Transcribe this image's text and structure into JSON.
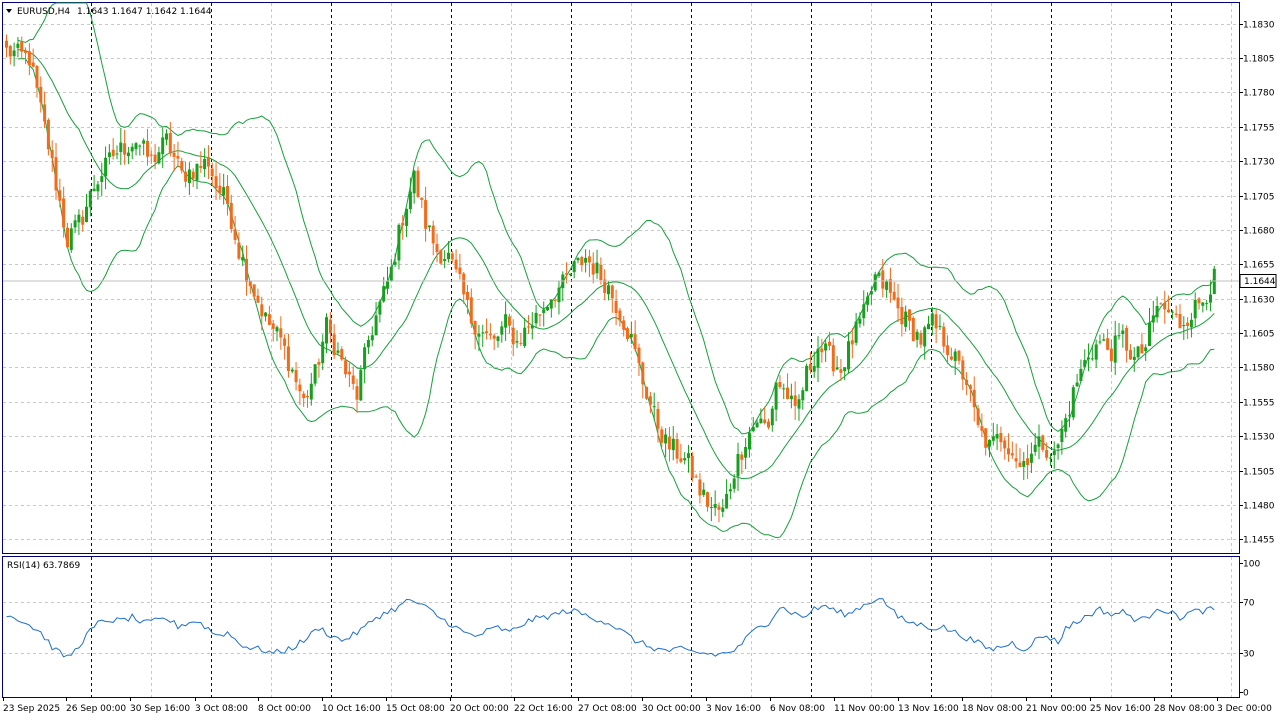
{
  "header": {
    "symbol": "EURUSD,H4",
    "ohlc": "1.1643 1.1647 1.1642 1.1644"
  },
  "current_price_label": "1.1644",
  "rsi_label": "RSI(14) 63.7869",
  "colors": {
    "background": "#ffffff",
    "frame": "#000080",
    "grid": "#c8c8c8",
    "bull_candle": "#16a01e",
    "bear_candle": "#f26a1b",
    "bands": "#17a03c",
    "rsi_line": "#1e6fd0",
    "price_tag_bg": "#ffffff"
  },
  "chart_data": [
    {
      "type": "candlestick",
      "title": "EURUSD,H4",
      "ylim": [
        1.1445,
        1.1845
      ],
      "yticks": [
        "1.1830",
        "1.1805",
        "1.1780",
        "1.1755",
        "1.1730",
        "1.1705",
        "1.1680",
        "1.1655",
        "1.1630",
        "1.1605",
        "1.1580",
        "1.1555",
        "1.1530",
        "1.1505",
        "1.1480",
        "1.1455"
      ],
      "xticks": [
        "23 Sep 2025",
        "26 Sep 00:00",
        "30 Sep 16:00",
        "3 Oct 08:00",
        "8 Oct 00:00",
        "10 Oct 16:00",
        "15 Oct 08:00",
        "20 Oct 00:00",
        "22 Oct 16:00",
        "27 Oct 08:00",
        "30 Oct 00:00",
        "3 Nov 16:00",
        "6 Nov 08:00",
        "11 Nov 00:00",
        "13 Nov 16:00",
        "18 Nov 08:00",
        "21 Nov 00:00",
        "25 Nov 16:00",
        "28 Nov 08:00",
        "3 Dec 00:00"
      ],
      "indicators": [
        "Bollinger Bands"
      ],
      "close_path": [
        [
          0,
          1.181
        ],
        [
          6,
          1.1805
        ],
        [
          10,
          1.1755
        ],
        [
          14,
          1.17
        ],
        [
          16,
          1.1672
        ],
        [
          20,
          1.169
        ],
        [
          23,
          1.1712
        ],
        [
          28,
          1.1735
        ],
        [
          34,
          1.1745
        ],
        [
          38,
          1.173
        ],
        [
          42,
          1.1745
        ],
        [
          46,
          1.172
        ],
        [
          50,
          1.1725
        ],
        [
          53,
          1.173
        ],
        [
          55,
          1.1712
        ],
        [
          58,
          1.17
        ],
        [
          61,
          1.1665
        ],
        [
          65,
          1.1635
        ],
        [
          68,
          1.1615
        ],
        [
          72,
          1.16
        ],
        [
          76,
          1.157
        ],
        [
          78,
          1.1555
        ],
        [
          81,
          1.1575
        ],
        [
          84,
          1.161
        ],
        [
          87,
          1.159
        ],
        [
          90,
          1.157
        ],
        [
          92,
          1.156
        ],
        [
          95,
          1.16
        ],
        [
          98,
          1.1625
        ],
        [
          101,
          1.165
        ],
        [
          104,
          1.169
        ],
        [
          107,
          1.1718
        ],
        [
          110,
          1.1685
        ],
        [
          113,
          1.1665
        ],
        [
          116,
          1.166
        ],
        [
          119,
          1.164
        ],
        [
          122,
          1.1615
        ],
        [
          125,
          1.1605
        ],
        [
          128,
          1.1598
        ],
        [
          131,
          1.1612
        ],
        [
          134,
          1.1598
        ],
        [
          137,
          1.161
        ],
        [
          140,
          1.162
        ],
        [
          143,
          1.1632
        ],
        [
          146,
          1.164
        ],
        [
          149,
          1.1652
        ],
        [
          152,
          1.166
        ],
        [
          155,
          1.165
        ],
        [
          158,
          1.1638
        ],
        [
          161,
          1.162
        ],
        [
          164,
          1.16
        ],
        [
          167,
          1.157
        ],
        [
          170,
          1.1545
        ],
        [
          173,
          1.1525
        ],
        [
          176,
          1.1518
        ],
        [
          179,
          1.151
        ],
        [
          182,
          1.149
        ],
        [
          185,
          1.1478
        ],
        [
          188,
          1.1475
        ],
        [
          191,
          1.1505
        ],
        [
          194,
          1.1528
        ],
        [
          197,
          1.1542
        ],
        [
          200,
          1.1535
        ],
        [
          202,
          1.157
        ],
        [
          205,
          1.156
        ],
        [
          207,
          1.1545
        ],
        [
          210,
          1.1575
        ],
        [
          213,
          1.1595
        ],
        [
          216,
          1.1588
        ],
        [
          219,
          1.1578
        ],
        [
          222,
          1.16
        ],
        [
          225,
          1.1618
        ],
        [
          228,
          1.1645
        ],
        [
          231,
          1.1638
        ],
        [
          234,
          1.1622
        ],
        [
          237,
          1.161
        ],
        [
          240,
          1.16
        ],
        [
          243,
          1.1612
        ],
        [
          246,
          1.16
        ],
        [
          249,
          1.1585
        ],
        [
          252,
          1.157
        ],
        [
          255,
          1.1535
        ],
        [
          258,
          1.1522
        ],
        [
          261,
          1.153
        ],
        [
          264,
          1.152
        ],
        [
          266,
          1.1508
        ],
        [
          269,
          1.152
        ],
        [
          272,
          1.1525
        ],
        [
          275,
          1.1515
        ],
        [
          278,
          1.1542
        ],
        [
          281,
          1.157
        ],
        [
          284,
          1.159
        ],
        [
          287,
          1.1598
        ],
        [
          290,
          1.1592
        ],
        [
          293,
          1.1602
        ],
        [
          296,
          1.1585
        ],
        [
          299,
          1.1595
        ],
        [
          302,
          1.1625
        ],
        [
          305,
          1.162
        ],
        [
          308,
          1.1612
        ],
        [
          311,
          1.162
        ],
        [
          314,
          1.163
        ],
        [
          317,
          1.1644
        ]
      ],
      "rsi": {
        "label": "RSI(14) 63.7869",
        "ylim": [
          0,
          100
        ],
        "yticks": [
          "100",
          "70",
          "30",
          "0"
        ],
        "levels": [
          30,
          70
        ],
        "path": [
          [
            0,
            60
          ],
          [
            3,
            57
          ],
          [
            6,
            52
          ],
          [
            9,
            46
          ],
          [
            12,
            35
          ],
          [
            14,
            30
          ],
          [
            16,
            27
          ],
          [
            18,
            32
          ],
          [
            21,
            44
          ],
          [
            24,
            53
          ],
          [
            27,
            56
          ],
          [
            30,
            55
          ],
          [
            33,
            58
          ],
          [
            36,
            53
          ],
          [
            39,
            55
          ],
          [
            42,
            57
          ],
          [
            45,
            51
          ],
          [
            48,
            54
          ],
          [
            50,
            55
          ],
          [
            53,
            49
          ],
          [
            55,
            44
          ],
          [
            58,
            46
          ],
          [
            61,
            38
          ],
          [
            64,
            34
          ],
          [
            67,
            33
          ],
          [
            70,
            30
          ],
          [
            73,
            32
          ],
          [
            76,
            36
          ],
          [
            79,
            42
          ],
          [
            82,
            50
          ],
          [
            85,
            44
          ],
          [
            88,
            40
          ],
          [
            91,
            44
          ],
          [
            94,
            50
          ],
          [
            97,
            58
          ],
          [
            100,
            62
          ],
          [
            103,
            66
          ],
          [
            106,
            72
          ],
          [
            108,
            68
          ],
          [
            111,
            64
          ],
          [
            114,
            57
          ],
          [
            117,
            52
          ],
          [
            120,
            46
          ],
          [
            123,
            43
          ],
          [
            126,
            47
          ],
          [
            129,
            50
          ],
          [
            132,
            46
          ],
          [
            135,
            52
          ],
          [
            138,
            56
          ],
          [
            141,
            58
          ],
          [
            144,
            60
          ],
          [
            147,
            63
          ],
          [
            150,
            62
          ],
          [
            153,
            58
          ],
          [
            156,
            56
          ],
          [
            159,
            52
          ],
          [
            162,
            46
          ],
          [
            165,
            40
          ],
          [
            168,
            36
          ],
          [
            171,
            33
          ],
          [
            174,
            32
          ],
          [
            177,
            33
          ],
          [
            180,
            31
          ],
          [
            183,
            30
          ],
          [
            186,
            29
          ],
          [
            189,
            30
          ],
          [
            192,
            34
          ],
          [
            195,
            44
          ],
          [
            198,
            52
          ],
          [
            200,
            54
          ],
          [
            203,
            66
          ],
          [
            206,
            62
          ],
          [
            209,
            58
          ],
          [
            212,
            64
          ],
          [
            215,
            67
          ],
          [
            218,
            62
          ],
          [
            221,
            60
          ],
          [
            224,
            66
          ],
          [
            227,
            70
          ],
          [
            229,
            74
          ],
          [
            231,
            68
          ],
          [
            234,
            58
          ],
          [
            237,
            54
          ],
          [
            240,
            52
          ],
          [
            243,
            50
          ],
          [
            246,
            50
          ],
          [
            249,
            46
          ],
          [
            252,
            42
          ],
          [
            255,
            38
          ],
          [
            258,
            33
          ],
          [
            261,
            35
          ],
          [
            264,
            38
          ],
          [
            267,
            33
          ],
          [
            270,
            40
          ],
          [
            273,
            44
          ],
          [
            276,
            38
          ],
          [
            278,
            50
          ],
          [
            281,
            54
          ],
          [
            284,
            60
          ],
          [
            287,
            64
          ],
          [
            290,
            60
          ],
          [
            293,
            62
          ],
          [
            296,
            57
          ],
          [
            299,
            56
          ],
          [
            302,
            66
          ],
          [
            305,
            62
          ],
          [
            308,
            58
          ],
          [
            311,
            62
          ],
          [
            314,
            63
          ],
          [
            317,
            64
          ]
        ]
      }
    }
  ]
}
